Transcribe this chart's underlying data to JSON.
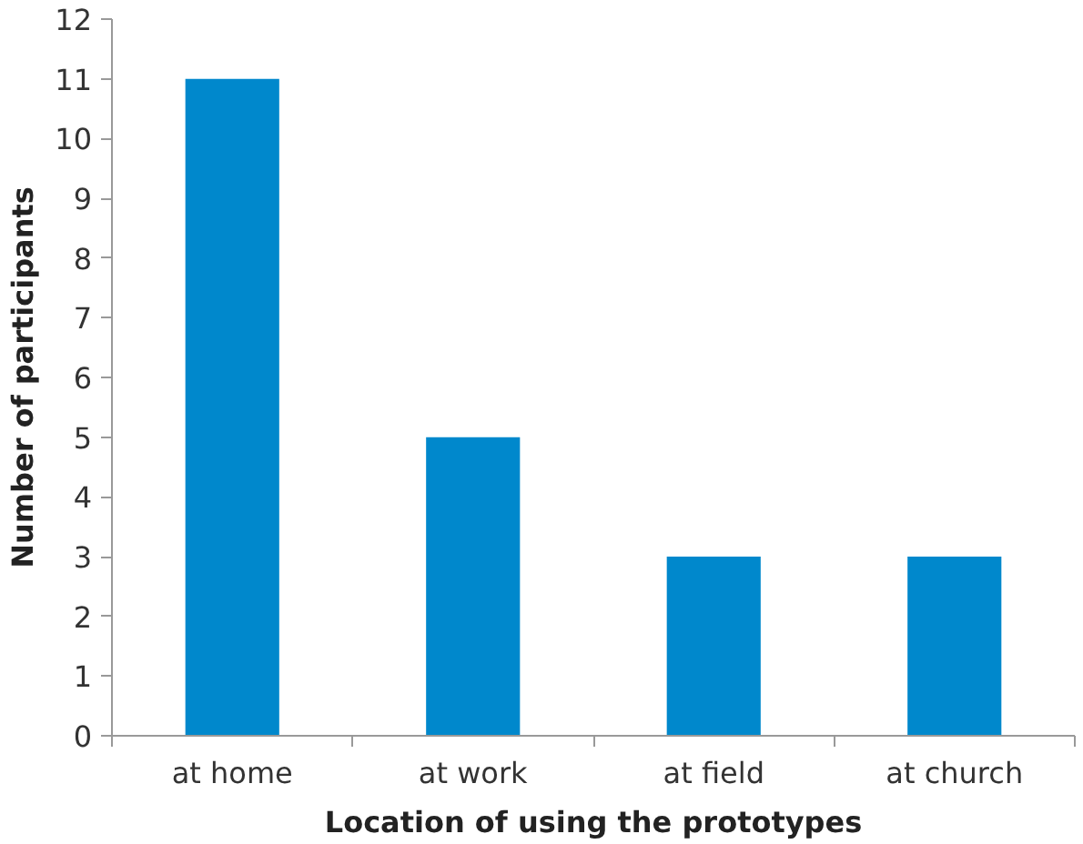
{
  "chart_data": {
    "type": "bar",
    "xlabel": "Location of using the prototypes",
    "ylabel": "Number of participants",
    "categories": [
      "at home",
      "at work",
      "at field",
      "at church"
    ],
    "values": [
      11,
      5,
      3,
      3
    ],
    "color": "#0088cc",
    "ylim": [
      0,
      12
    ],
    "yticks": [
      0,
      1,
      2,
      3,
      4,
      5,
      6,
      7,
      8,
      9,
      10,
      11,
      12
    ],
    "grid": false
  }
}
